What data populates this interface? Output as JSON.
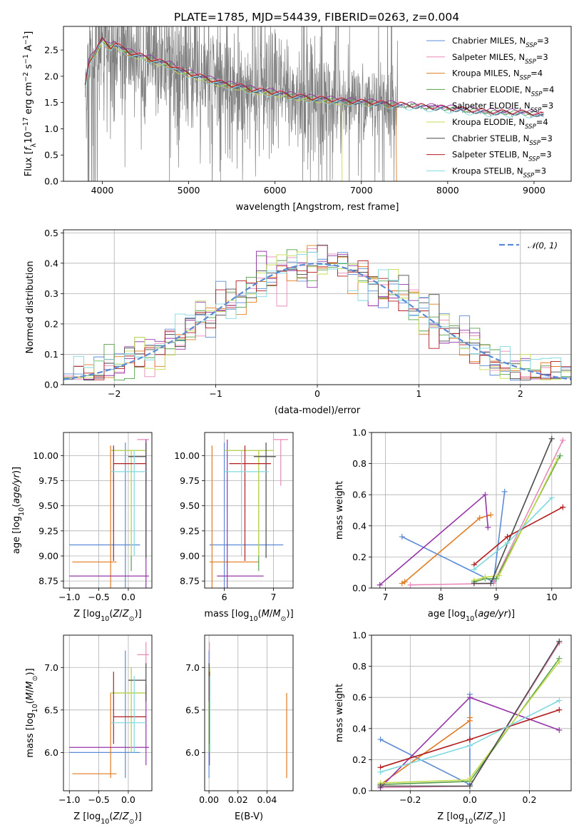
{
  "title": "PLATE=1785, MJD=54439, FIBERID=0263, z=0.004",
  "colors": {
    "chabrier_miles": "#5b8bd6",
    "salpeter_miles": "#e889b8",
    "kroupa_miles": "#e07b20",
    "chabrier_elodie": "#56a04a",
    "salpeter_elodie": "#9535a8",
    "kroupa_elodie": "#c4dc4c",
    "chabrier_stelib": "#4a4a4a",
    "salpeter_stelib": "#b21c1c",
    "kroupa_stelib": "#7fd8e0",
    "data": "#808080",
    "normal": "#5b8bd6"
  },
  "chart_data": [
    {
      "type": "line",
      "xlabel": "wavelength [Angstrom, rest frame]",
      "ylabel": "Flux [f_λ 10^-17 erg cm^-2 s^-1 A^-1]",
      "xlim": [
        3550,
        9430
      ],
      "ylim": [
        0,
        2.95
      ],
      "xticks": [
        4000,
        5000,
        6000,
        7000,
        8000,
        9000
      ],
      "yticks": [
        "0.0",
        "0.5",
        "1.0",
        "1.5",
        "2.0",
        "2.5"
      ],
      "legend_position": "top-right",
      "legend": [
        {
          "label": "Chabrier MILES, N",
          "sub": "SSP",
          "eq": "=3",
          "color_key": "chabrier_miles"
        },
        {
          "label": "Salpeter MILES, N",
          "sub": "SSP",
          "eq": "=3",
          "color_key": "salpeter_miles"
        },
        {
          "label": "Kroupa MILES, N",
          "sub": "SSP",
          "eq": "=4",
          "color_key": "kroupa_miles"
        },
        {
          "label": "Chabrier ELODIE, N",
          "sub": "SSP",
          "eq": "=4",
          "color_key": "chabrier_elodie"
        },
        {
          "label": "Salpeter ELODIE, N",
          "sub": "SSP",
          "eq": "=3",
          "color_key": "salpeter_elodie"
        },
        {
          "label": "Kroupa ELODIE, N",
          "sub": "SSP",
          "eq": "=4",
          "color_key": "kroupa_elodie"
        },
        {
          "label": "Chabrier STELIB, N",
          "sub": "SSP",
          "eq": "=3",
          "color_key": "chabrier_stelib"
        },
        {
          "label": "Salpeter STELIB, N",
          "sub": "SSP",
          "eq": "=3",
          "color_key": "salpeter_stelib"
        },
        {
          "label": "Kroupa STELIB, N",
          "sub": "SSP",
          "eq": "=3",
          "color_key": "kroupa_stelib"
        }
      ],
      "model_continuum": {
        "x": [
          3800,
          3850,
          3900,
          3950,
          4000,
          4050,
          4100,
          4150,
          4200,
          4300,
          4400,
          4500,
          4600,
          4700,
          4800,
          4900,
          5000,
          5100,
          5200,
          5300,
          5400,
          5500,
          5600,
          5700,
          5800,
          5900,
          6000,
          6200,
          6400,
          6600,
          6800,
          7000,
          7200,
          7400,
          7600,
          7800,
          8000,
          8200,
          8400,
          8600,
          8800,
          9000,
          9100
        ],
        "y": [
          1.8,
          2.3,
          2.4,
          2.55,
          2.7,
          2.6,
          2.55,
          2.62,
          2.55,
          2.45,
          2.4,
          2.35,
          2.3,
          2.25,
          2.2,
          2.1,
          2.05,
          2.0,
          1.95,
          1.9,
          1.85,
          1.82,
          1.8,
          1.75,
          1.72,
          1.7,
          1.68,
          1.62,
          1.58,
          1.55,
          1.52,
          1.5,
          1.48,
          1.45,
          1.43,
          1.4,
          1.38,
          1.35,
          1.32,
          1.3,
          1.3,
          1.28,
          1.25
        ]
      }
    },
    {
      "type": "line",
      "xlabel": "(data-model)/error",
      "ylabel": "Normed distribution",
      "xlim": [
        -2.5,
        2.5
      ],
      "ylim": [
        0,
        0.51
      ],
      "xticks": [
        -2,
        -1,
        0,
        1,
        2
      ],
      "xtick_labels": [
        "−2",
        "−1",
        "0",
        "1",
        "2"
      ],
      "yticks": [
        0.0,
        0.1,
        0.2,
        0.3,
        0.4,
        0.5
      ],
      "ytick_labels": [
        "0.0",
        "0.1",
        "0.2",
        "0.3",
        "0.4",
        "0.5"
      ],
      "legend_position": "top-right",
      "legend_label": "𝒩(0, 1)",
      "bin_width": 0.1,
      "bin_start": -2.5
    },
    {
      "type": "scatter",
      "xlabel": "Z [log10(Z/Z⊙)]",
      "ylabel": "age  [log10(age/yr)]",
      "xlim": [
        -1.1,
        0.4
      ],
      "ylim": [
        8.68,
        10.23
      ],
      "xticks": [
        -1.0,
        -0.5,
        0.0
      ],
      "xtick_labels": [
        "−1.0",
        "−0.5",
        "0.0"
      ],
      "yticks": [
        "8.75",
        "9.00",
        "9.25",
        "9.50",
        "9.75",
        "10.00"
      ]
    },
    {
      "type": "scatter",
      "xlabel": "mass [log10(M/M⊙)]",
      "xlim": [
        5.6,
        7.4
      ],
      "ylim": [
        8.68,
        10.23
      ],
      "xticks": [
        6,
        7
      ],
      "yticks": [
        "8.75",
        "9.00",
        "9.25",
        "9.50",
        "9.75",
        "10.00"
      ]
    },
    {
      "type": "line",
      "xlabel": "age  [log10(age/yr)]",
      "ylabel": "mass weight",
      "xlim": [
        6.75,
        10.35
      ],
      "ylim": [
        0,
        1.0
      ],
      "xticks": [
        7,
        8,
        9,
        10
      ],
      "yticks": [
        "0.0",
        "0.2",
        "0.4",
        "0.6",
        "0.8",
        "1.0"
      ]
    },
    {
      "type": "scatter",
      "xlabel": "Z [log10(Z/Z⊙)]",
      "ylabel": "mass [log10(M/M⊙)]",
      "xlim": [
        -1.1,
        0.4
      ],
      "ylim": [
        5.55,
        7.38
      ],
      "xticks": [
        -1.0,
        -0.5,
        0.0
      ],
      "xtick_labels": [
        "−1.0",
        "−0.5",
        "0.0"
      ],
      "yticks": [
        "6.0",
        "6.5",
        "7.0"
      ]
    },
    {
      "type": "scatter",
      "xlabel": "E(B-V)",
      "xlim": [
        -0.003,
        0.058
      ],
      "ylim": [
        5.55,
        7.38
      ],
      "xticks": [
        0.0,
        0.02,
        0.04
      ],
      "xtick_labels": [
        "0.00",
        "0.02",
        "0.04"
      ],
      "yticks": [
        "6.0",
        "6.5",
        "7.0"
      ]
    },
    {
      "type": "line",
      "xlabel": "Z [log10(Z/Z⊙)]",
      "ylabel": "mass weight",
      "xlim": [
        -0.33,
        0.34
      ],
      "ylim": [
        0,
        1.0
      ],
      "xticks": [
        -0.2,
        0.0,
        0.2
      ],
      "xtick_labels": [
        "−0.2",
        "0.0",
        "0.2"
      ],
      "yticks": [
        "0.0",
        "0.2",
        "0.4",
        "0.6",
        "0.8",
        "1.0"
      ]
    }
  ],
  "models": [
    {
      "key": "chabrier_miles",
      "ages": [
        7.3,
        8.95,
        9.15
      ],
      "Z": [
        -0.3,
        0.0,
        0.0
      ],
      "mass": [
        5.88,
        6.0,
        6.95
      ],
      "weights": [
        0.33,
        0.04,
        0.62
      ],
      "ebv": 0.0
    },
    {
      "key": "salpeter_miles",
      "ages": [
        7.45,
        8.95,
        10.2
      ],
      "Z": [
        -0.3,
        0.0,
        0.3
      ],
      "mass": [
        6.1,
        6.3,
        7.3
      ],
      "weights": [
        0.02,
        0.03,
        0.95
      ],
      "ebv": 0.0
    },
    {
      "key": "kroupa_miles",
      "ages": [
        7.3,
        7.35,
        8.7,
        8.9
      ],
      "Z": [
        -0.3,
        -0.3,
        0.0,
        0.0
      ],
      "mass": [
        5.75,
        5.9,
        6.2,
        6.45
      ],
      "weights": [
        0.03,
        0.04,
        0.45,
        0.47
      ],
      "ebv": 0.053
    },
    {
      "key": "chabrier_elodie",
      "ages": [
        8.6,
        8.8,
        9.0,
        10.15
      ],
      "Z": [
        -0.3,
        0.0,
        0.0,
        0.3
      ],
      "mass": [
        6.0,
        6.4,
        6.7,
        7.0
      ],
      "weights": [
        0.04,
        0.06,
        0.06,
        0.85
      ],
      "ebv": 0.0
    },
    {
      "key": "salpeter_elodie",
      "ages": [
        6.9,
        8.8,
        8.85
      ],
      "Z": [
        -0.3,
        0.0,
        0.3
      ],
      "mass": [
        6.06,
        6.3,
        6.8
      ],
      "weights": [
        0.02,
        0.6,
        0.39
      ],
      "ebv": 0.0
    },
    {
      "key": "kroupa_elodie",
      "ages": [
        8.6,
        8.8,
        9.05,
        10.1
      ],
      "Z": [
        -0.3,
        0.0,
        0.0,
        0.3
      ],
      "mass": [
        6.0,
        6.5,
        6.7,
        6.95
      ],
      "weights": [
        0.05,
        0.07,
        0.08,
        0.83
      ],
      "ebv": 0.0
    },
    {
      "key": "chabrier_stelib",
      "ages": [
        8.6,
        8.9,
        10.0
      ],
      "Z": [
        -0.3,
        0.0,
        0.3
      ],
      "mass": [
        6.0,
        6.6,
        6.85
      ],
      "weights": [
        0.03,
        0.03,
        0.96
      ],
      "ebv": 0.0
    },
    {
      "key": "salpeter_stelib",
      "ages": [
        8.6,
        9.2,
        10.2
      ],
      "Z": [
        -0.3,
        0.0,
        0.3
      ],
      "mass": [
        6.1,
        6.4,
        6.9
      ],
      "weights": [
        0.15,
        0.33,
        0.52
      ],
      "ebv": 0.0
    },
    {
      "key": "kroupa_stelib",
      "ages": [
        8.6,
        9.2,
        10.0
      ],
      "Z": [
        -0.3,
        0.0,
        0.3
      ],
      "mass": [
        6.0,
        6.4,
        6.9
      ],
      "weights": [
        0.12,
        0.29,
        0.58
      ],
      "ebv": 0.0
    }
  ],
  "median_points": [
    {
      "key": "chabrier_miles",
      "Z": -0.05,
      "age_lo": 8.68,
      "age_hi": 10.13,
      "Z_lo": -1.0,
      "Z_hi": 0.2,
      "age_c": 9.11,
      "mass": 5.88,
      "mass_lo": 5.7,
      "mass_hi": 7.2,
      "mass_c": 6.0
    },
    {
      "key": "salpeter_miles",
      "Z": 0.3,
      "age_lo": 9.7,
      "age_hi": 10.16,
      "Z_lo": 0.15,
      "Z_hi": 0.35,
      "age_c": 10.16,
      "mass": 7.15,
      "mass_lo": 7.0,
      "mass_hi": 7.3,
      "mass_c": 7.15
    },
    {
      "key": "kroupa_miles",
      "Z": -0.3,
      "age_lo": 8.68,
      "age_hi": 10.1,
      "Z_lo": -0.95,
      "Z_hi": -0.2,
      "age_c": 8.94,
      "mass": 5.75,
      "mass_lo": 5.7,
      "mass_hi": 6.7,
      "mass_c": 5.75
    },
    {
      "key": "chabrier_elodie",
      "Z": 0.05,
      "age_lo": 8.85,
      "age_hi": 10.05,
      "Z_lo": -0.3,
      "Z_hi": 0.3,
      "age_c": 10.05,
      "mass": 6.7,
      "mass_lo": 6.0,
      "mass_hi": 7.0,
      "mass_c": 6.7
    },
    {
      "key": "salpeter_elodie",
      "Z": 0.3,
      "age_lo": 8.68,
      "age_hi": 10.16,
      "Z_lo": -1.0,
      "Z_hi": 0.35,
      "age_c": 8.8,
      "mass": 6.06,
      "mass_lo": 5.85,
      "mass_hi": 6.8,
      "mass_c": 6.06
    },
    {
      "key": "kroupa_elodie",
      "Z": 0.05,
      "age_lo": 9.0,
      "age_hi": 10.05,
      "Z_lo": -0.3,
      "Z_hi": 0.3,
      "age_c": 10.05,
      "mass": 6.7,
      "mass_lo": 6.0,
      "mass_hi": 7.0,
      "mass_c": 6.7
    },
    {
      "key": "chabrier_stelib",
      "Z": 0.3,
      "age_lo": 8.98,
      "age_hi": 10.13,
      "Z_lo": 0.0,
      "Z_hi": 0.3,
      "age_c": 9.99,
      "mass": 6.85,
      "mass_lo": 6.6,
      "mass_hi": 7.05,
      "mass_c": 6.85
    },
    {
      "key": "salpeter_stelib",
      "Z": -0.25,
      "age_lo": 8.95,
      "age_hi": 10.1,
      "Z_lo": -0.25,
      "Z_hi": 0.3,
      "age_c": 9.92,
      "mass": 6.42,
      "mass_lo": 6.1,
      "mass_hi": 6.95,
      "mass_c": 6.42
    },
    {
      "key": "kroupa_stelib",
      "Z": 0.1,
      "age_lo": 9.0,
      "age_hi": 10.05,
      "Z_lo": -0.3,
      "Z_hi": 0.3,
      "age_c": 9.84,
      "mass": 6.35,
      "mass_lo": 6.0,
      "mass_hi": 6.9,
      "mass_c": 6.35
    }
  ]
}
